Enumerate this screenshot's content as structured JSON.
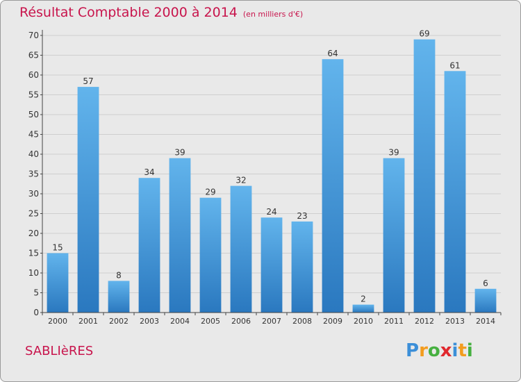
{
  "title": "Résultat Comptable 2000 à 2014",
  "subtitle": "(en milliers d'€)",
  "commune": "SABLIèRES",
  "logo": {
    "letters": [
      "P",
      "r",
      "o",
      "x",
      "i",
      "t",
      "i"
    ],
    "colors": [
      "#3c8fd8",
      "#f39c1e",
      "#46b040",
      "#e0282e",
      "#3c8fd8",
      "#f39c1e",
      "#46b040"
    ]
  },
  "colors": {
    "title": "#c8144c",
    "bar_top": "#62b4ec",
    "bar_bottom": "#2a78bf",
    "grid": "#cfcfcf",
    "axis": "#444444"
  },
  "chart_data": {
    "type": "bar",
    "categories": [
      "2000",
      "2001",
      "2002",
      "2003",
      "2004",
      "2005",
      "2006",
      "2007",
      "2008",
      "2009",
      "2010",
      "2011",
      "2012",
      "2013",
      "2014"
    ],
    "values": [
      15,
      57,
      8,
      34,
      39,
      29,
      32,
      24,
      23,
      64,
      2,
      39,
      69,
      61,
      6
    ],
    "ylim": [
      0,
      70
    ],
    "yticks": [
      0,
      5,
      10,
      15,
      20,
      25,
      30,
      35,
      40,
      45,
      50,
      55,
      60,
      65,
      70
    ],
    "grid": true
  }
}
